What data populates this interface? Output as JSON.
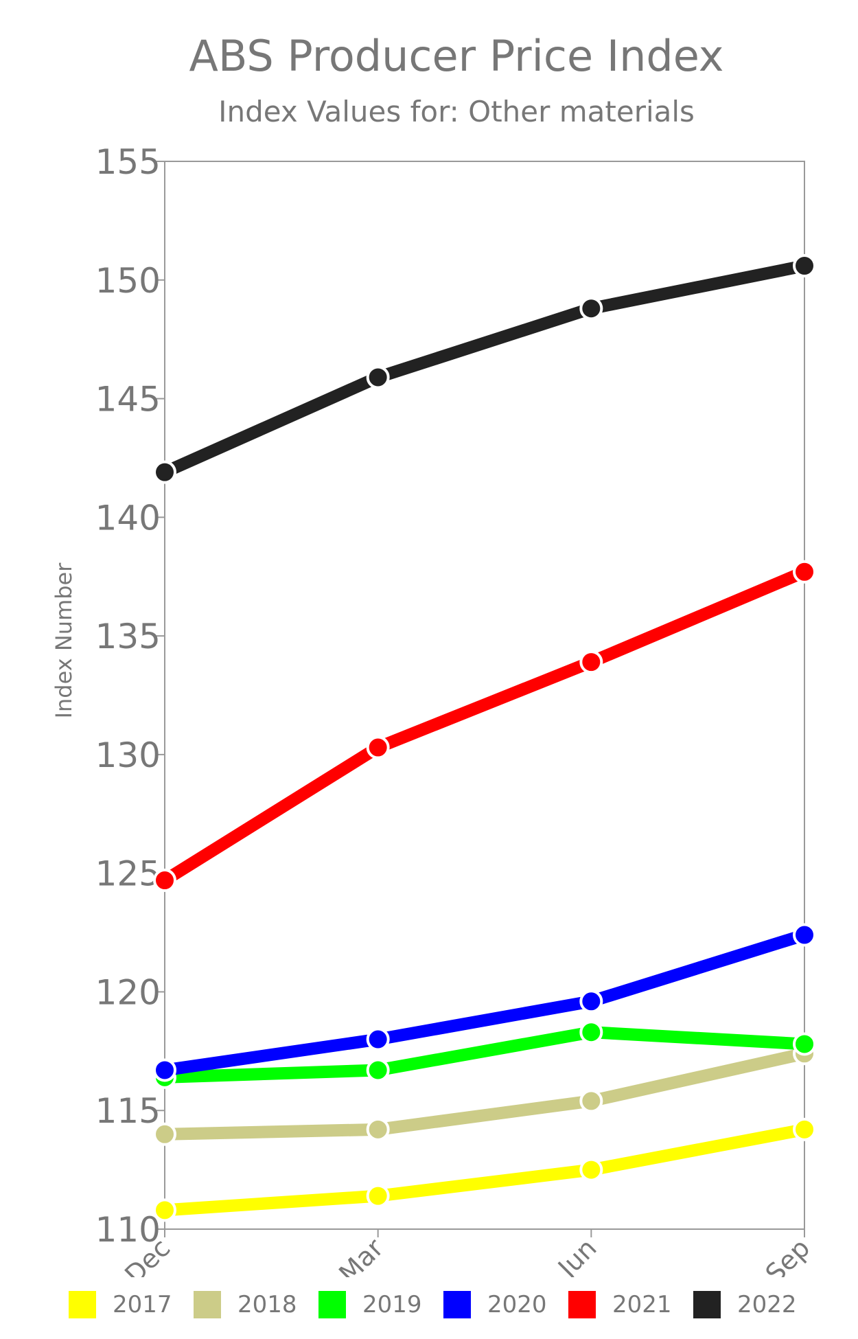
{
  "chart_data": {
    "type": "line",
    "title": "ABS Producer Price Index",
    "subtitle": "Index Values for: Other materials",
    "ylabel": "Index Number",
    "xlabel": "",
    "categories": [
      "Dec",
      "Mar",
      "Jun",
      "Sep"
    ],
    "ylim": [
      110,
      155
    ],
    "yticks": [
      110,
      115,
      120,
      125,
      130,
      135,
      140,
      145,
      150,
      155
    ],
    "grid": false,
    "legend_position": "bottom",
    "series": [
      {
        "name": "2017",
        "color": "#ffff00",
        "values": [
          110.8,
          111.4,
          112.5,
          114.2
        ]
      },
      {
        "name": "2018",
        "color": "#cccc88",
        "values": [
          114.0,
          114.2,
          115.4,
          117.4
        ]
      },
      {
        "name": "2019",
        "color": "#00ff00",
        "values": [
          116.4,
          116.7,
          118.3,
          117.8
        ]
      },
      {
        "name": "2020",
        "color": "#0000ff",
        "values": [
          116.7,
          118.0,
          119.6,
          122.4
        ]
      },
      {
        "name": "2021",
        "color": "#ff0000",
        "values": [
          124.7,
          130.3,
          133.9,
          137.7
        ]
      },
      {
        "name": "2022",
        "color": "#222222",
        "values": [
          141.9,
          145.9,
          148.8,
          150.6
        ]
      }
    ]
  }
}
